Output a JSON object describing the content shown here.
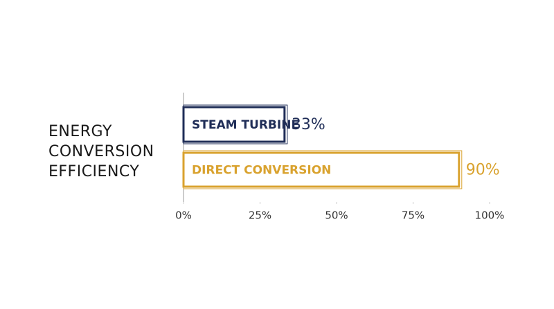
{
  "chart_data": {
    "type": "bar",
    "orientation": "horizontal",
    "y_label": "ENERGY CONVERSION EFFICIENCY",
    "categories": [
      "STEAM TURBINE",
      "DIRECT CONVERSION"
    ],
    "values": [
      33,
      90
    ],
    "value_labels": [
      "33%",
      "90%"
    ],
    "colors": [
      "#1f2d57",
      "#d9a22e"
    ],
    "xlim": [
      0,
      100
    ],
    "xticks": [
      {
        "value": 0,
        "label": "0%"
      },
      {
        "value": 25,
        "label": "25%"
      },
      {
        "value": 50,
        "label": "50%"
      },
      {
        "value": 75,
        "label": "75%"
      },
      {
        "value": 100,
        "label": "100%"
      }
    ]
  }
}
